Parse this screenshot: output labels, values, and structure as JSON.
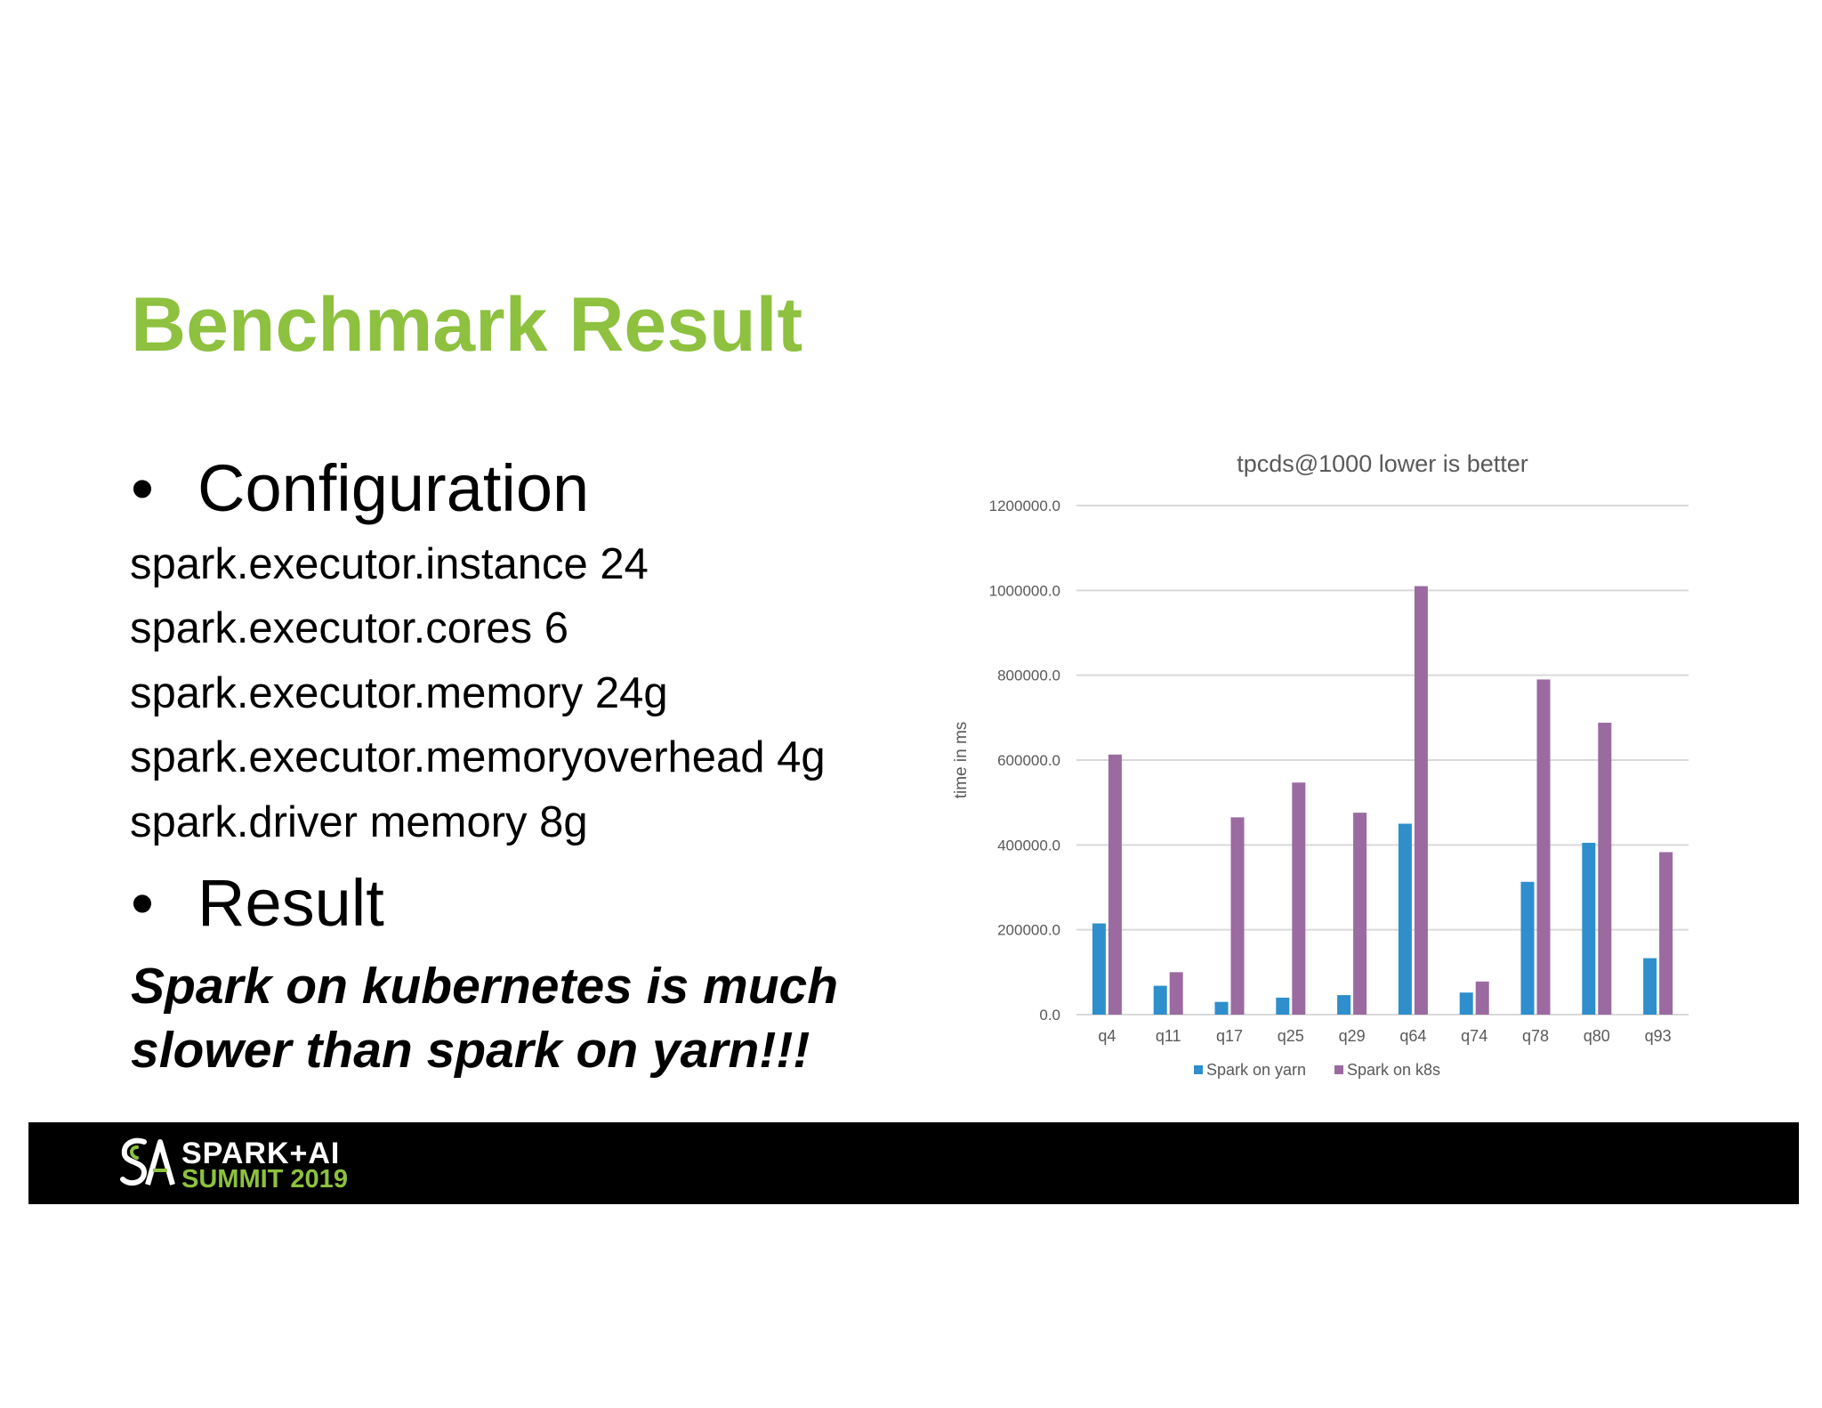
{
  "slide": {
    "title": "Benchmark Result",
    "bullets": [
      {
        "symbol": "•",
        "label": "Configuration"
      },
      {
        "symbol": "•",
        "label": "Result"
      }
    ],
    "config_lines": [
      "spark.executor.instance 24",
      "spark.executor.cores 6",
      "spark.executor.memory 24g",
      "spark.executor.memoryoverhead 4g",
      "spark.driver memory 8g"
    ],
    "conclusion_lines": [
      "Spark on kubernetes is much",
      "slower than spark on yarn!!!"
    ]
  },
  "footer": {
    "logo_line1": "SPARK+AI",
    "logo_line2": "SUMMIT 2019",
    "logo_colors": {
      "primary": "#ffffff",
      "accent": "#8dc13f"
    }
  },
  "chart_data": {
    "type": "bar",
    "title": "tpcds@1000 lower is better",
    "xlabel": "",
    "ylabel": "time in ms",
    "ylim": [
      0,
      1200000
    ],
    "yticks": [
      "0.0",
      "200000.0",
      "400000.0",
      "600000.0",
      "800000.0",
      "1000000.0",
      "1200000.0"
    ],
    "grid": true,
    "legend_position": "bottom",
    "categories": [
      "q4",
      "q11",
      "q17",
      "q25",
      "q29",
      "q64",
      "q74",
      "q78",
      "q80",
      "q93"
    ],
    "series": [
      {
        "name": "Spark on yarn",
        "color": "#2e8fcc",
        "values": [
          215000,
          68000,
          30000,
          40000,
          46000,
          450000,
          52000,
          313000,
          405000,
          133000
        ]
      },
      {
        "name": "Spark on k8s",
        "color": "#9b6aa1",
        "values": [
          613000,
          100000,
          465000,
          547000,
          476000,
          1010000,
          78000,
          790000,
          688000,
          383000
        ]
      }
    ]
  }
}
